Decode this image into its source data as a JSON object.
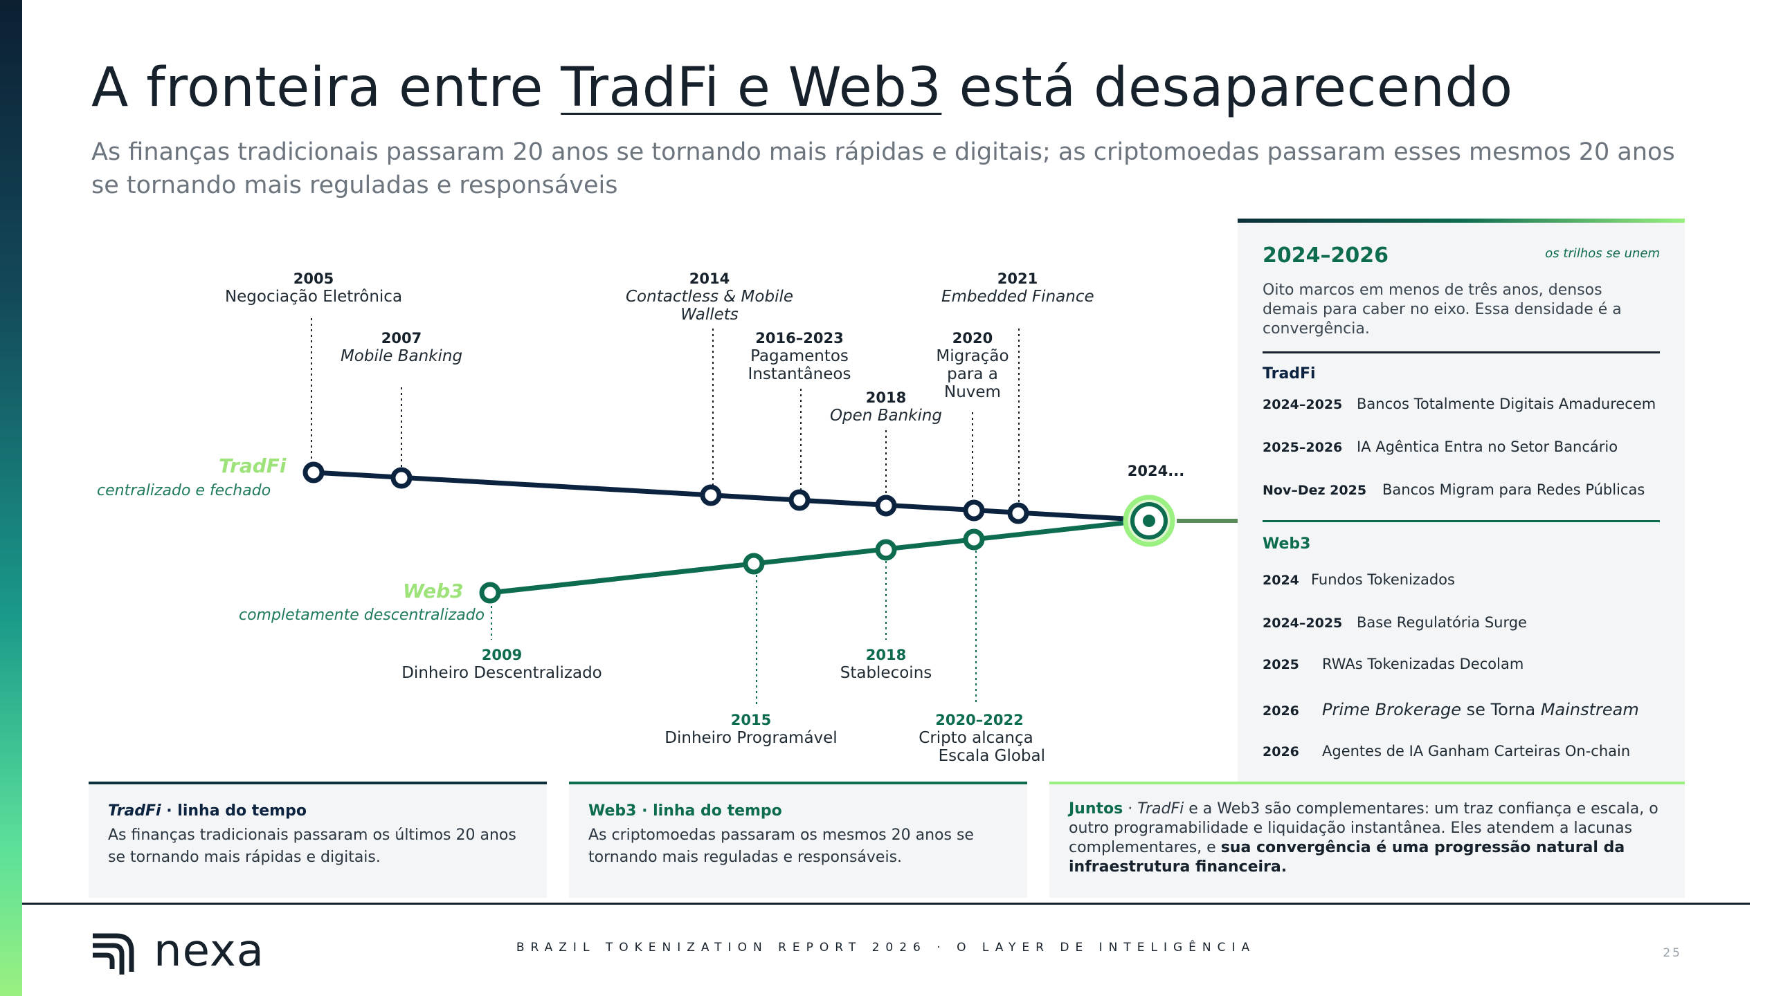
{
  "title": {
    "before": "A fronteira entre ",
    "highlight": "TradFi e Web3",
    "after": " está desaparecendo"
  },
  "subtitle": "As finanças tradicionais passaram 20 anos se tornando mais rápidas e digitais; as criptomoedas passaram esses mesmos 20 anos se tornando mais reguladas e responsáveis",
  "colors": {
    "tradfi": "#0c2340",
    "web3": "#0d6b50",
    "accent": "#9af080"
  },
  "timeline": {
    "tradfi": {
      "name": "TradFi",
      "sub": "centralizado e fechado",
      "events": [
        {
          "year": "2005",
          "label": "Negociação Eletrônica"
        },
        {
          "year": "2007",
          "label": "Mobile Banking"
        },
        {
          "year": "2014",
          "label": "Contactless & Mobile Wallets"
        },
        {
          "year": "2016–2023",
          "label_line1": "Pagamentos",
          "label_line2": "Instantâneos"
        },
        {
          "year": "2018",
          "label": "Open Banking"
        },
        {
          "year": "2020",
          "label_line1": "Migração",
          "label_line2": "para a",
          "label_line3": "Nuvem"
        },
        {
          "year": "2021",
          "label": "Embedded Finance"
        }
      ]
    },
    "web3": {
      "name": "Web3",
      "sub": "completamente descentralizado",
      "events": [
        {
          "year": "2009",
          "label": "Dinheiro Descentralizado"
        },
        {
          "year": "2015",
          "label": "Dinheiro Programável"
        },
        {
          "year": "2018",
          "label": "Stablecoins"
        },
        {
          "year": "2020–2022",
          "label_line1": "Cripto alcança",
          "label_line2": "Escala Global"
        }
      ]
    },
    "convergence": "2024..."
  },
  "panel": {
    "range": "2024–2026",
    "tag": "os trilhos se unem",
    "desc": "Oito marcos em menos de três anos, densos demais para caber no eixo. Essa densidade é a convergência.",
    "tradfi_title": "TradFi",
    "tradfi_items": [
      {
        "date": "2024–2025",
        "text": "Bancos Totalmente Digitais Amadurecem"
      },
      {
        "date": "2025–2026",
        "text": "IA Agêntica Entra no Setor Bancário"
      },
      {
        "date": "Nov–Dez 2025",
        "text": "Bancos Migram para Redes Públicas"
      }
    ],
    "web3_title": "Web3",
    "web3_items": [
      {
        "date": "2024",
        "text": "Fundos Tokenizados"
      },
      {
        "date": "2024–2025",
        "text": "Base Regulatória Surge"
      },
      {
        "date": "2025",
        "text": "RWAs Tokenizadas Decolam"
      },
      {
        "date": "2026",
        "text_em1": "Prime Brokerage",
        "text_mid": " se Torna ",
        "text_em2": "Mainstream"
      },
      {
        "date": "2026",
        "text": "Agentes de IA Ganham Carteiras On-chain"
      }
    ]
  },
  "cards": {
    "tradfi": {
      "title_em": "TradFi",
      "title_rest": " · linha do tempo",
      "text": "As finanças tradicionais passaram os últimos 20 anos se tornando mais rápidas e digitais."
    },
    "web3": {
      "title": "Web3 · linha do tempo",
      "text": "As criptomoedas passaram os mesmos 20 anos se tornando mais reguladas e responsáveis."
    },
    "together": {
      "lead": "Juntos",
      "sep": " · ",
      "em": "TradFi",
      "body": " e a Web3 são complementares: um traz confiança e escala, o outro programabilidade e liquidação instantânea. Eles atendem a lacunas complementares, e ",
      "strong": "sua convergência é uma progressão natural da infraestrutura financeira."
    }
  },
  "footer": {
    "brand": "nexa",
    "report": "BRAZIL TOKENIZATION REPORT 2026 · O LAYER DE INTELIGÊNCIA",
    "page": "25"
  }
}
